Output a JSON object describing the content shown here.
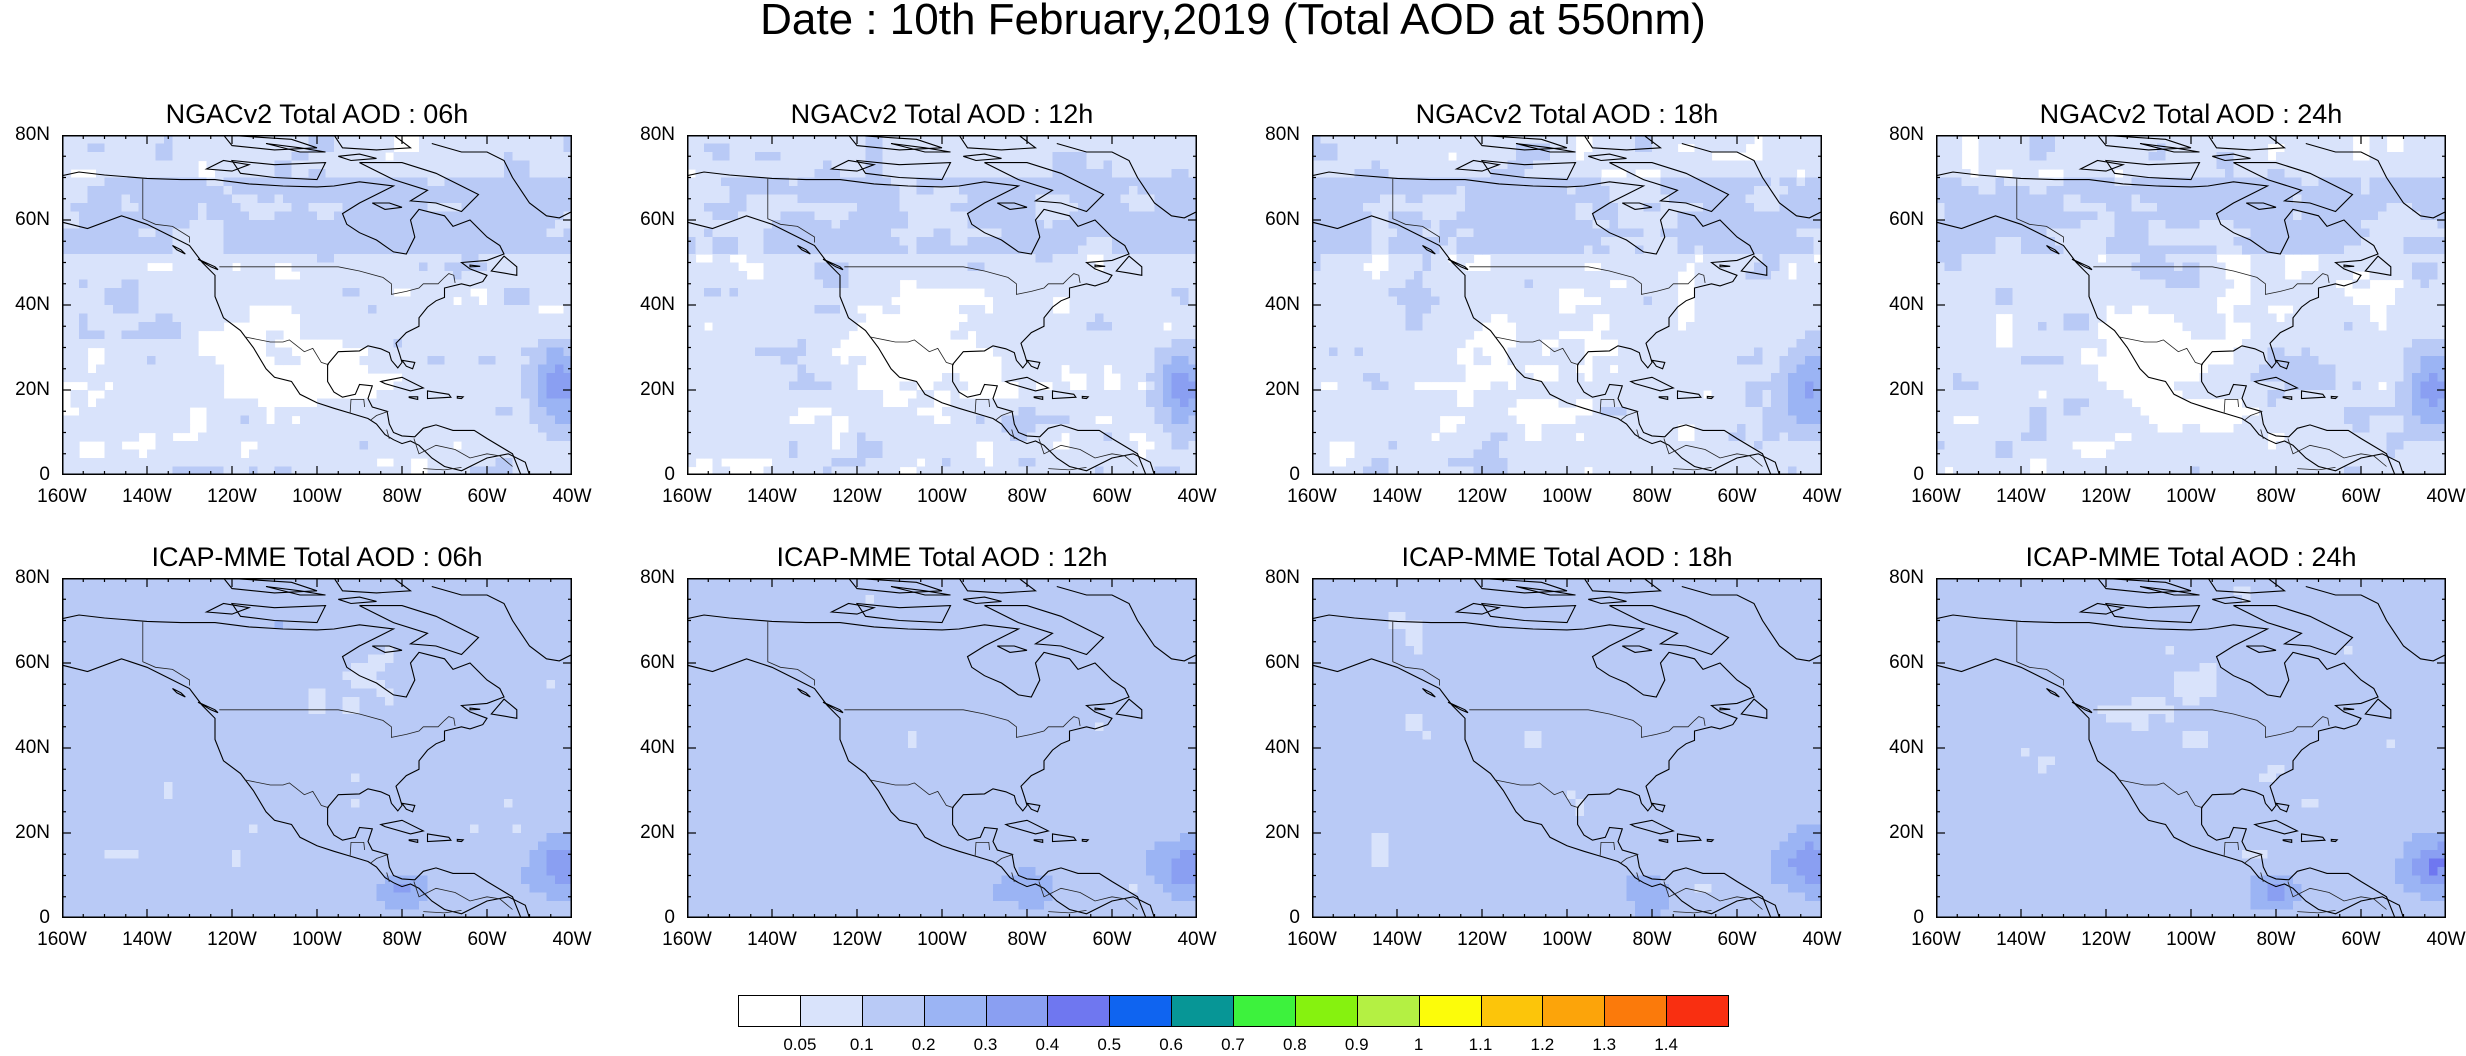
{
  "figure": {
    "title": "Date : 10th February,2019 (Total AOD at 550nm)"
  },
  "axes": {
    "y_ticks": [
      "80N",
      "60N",
      "40N",
      "20N",
      "0"
    ],
    "x_ticks": [
      "160W",
      "140W",
      "120W",
      "100W",
      "80W",
      "60W",
      "40W"
    ],
    "lon_range": [
      -160,
      -40
    ],
    "lat_range": [
      0,
      80
    ]
  },
  "panels": [
    {
      "title": "NGACv2 Total AOD : 06h",
      "model": "NGACv2",
      "hour": "06h"
    },
    {
      "title": "NGACv2 Total AOD : 12h",
      "model": "NGACv2",
      "hour": "12h"
    },
    {
      "title": "NGACv2 Total AOD : 18h",
      "model": "NGACv2",
      "hour": "18h"
    },
    {
      "title": "NGACv2 Total AOD : 24h",
      "model": "NGACv2",
      "hour": "24h"
    },
    {
      "title": "ICAP-MME Total AOD : 06h",
      "model": "ICAP-MME",
      "hour": "06h"
    },
    {
      "title": "ICAP-MME Total AOD : 12h",
      "model": "ICAP-MME",
      "hour": "12h"
    },
    {
      "title": "ICAP-MME Total AOD : 18h",
      "model": "ICAP-MME",
      "hour": "18h"
    },
    {
      "title": "ICAP-MME Total AOD : 24h",
      "model": "ICAP-MME",
      "hour": "24h"
    }
  ],
  "colorbar": {
    "labels": [
      "0.05",
      "0.1",
      "0.2",
      "0.3",
      "0.4",
      "0.5",
      "0.6",
      "0.7",
      "0.8",
      "0.9",
      "1",
      "1.1",
      "1.2",
      "1.3",
      "1.4"
    ],
    "colors": [
      "#ffffff",
      "#d9e3fb",
      "#b9caf6",
      "#9bb4f4",
      "#8a9ff2",
      "#6f77f0",
      "#0f64f0",
      "#079696",
      "#3df23d",
      "#86f20f",
      "#b4f043",
      "#fcfc0a",
      "#fcc50a",
      "#fca40a",
      "#fb7a0b",
      "#f92f11"
    ]
  }
}
